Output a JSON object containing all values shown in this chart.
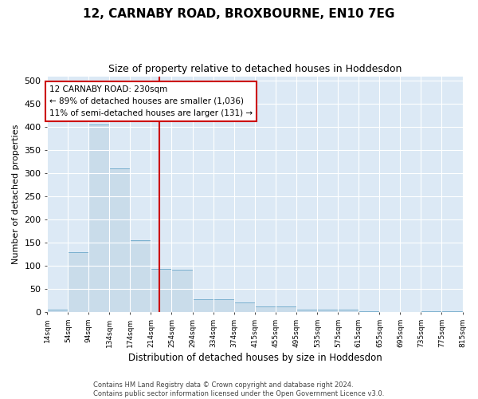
{
  "title": "12, CARNABY ROAD, BROXBOURNE, EN10 7EG",
  "subtitle": "Size of property relative to detached houses in Hoddesdon",
  "xlabel": "Distribution of detached houses by size in Hoddesdon",
  "ylabel": "Number of detached properties",
  "footer1": "Contains HM Land Registry data © Crown copyright and database right 2024.",
  "footer2": "Contains public sector information licensed under the Open Government Licence v3.0.",
  "annotation_line1": "12 CARNABY ROAD: 230sqm",
  "annotation_line2": "← 89% of detached houses are smaller (1,036)",
  "annotation_line3": "11% of semi-detached houses are larger (131) →",
  "bar_left_edges": [
    14,
    54,
    94,
    134,
    174,
    214,
    254,
    294,
    334,
    374,
    415,
    455,
    495,
    535,
    575,
    615,
    655,
    695,
    735,
    775
  ],
  "bar_widths": [
    40,
    40,
    40,
    40,
    40,
    40,
    40,
    40,
    40,
    41,
    40,
    40,
    40,
    40,
    40,
    40,
    40,
    40,
    40,
    40
  ],
  "bar_heights": [
    5,
    130,
    405,
    310,
    155,
    93,
    92,
    28,
    28,
    20,
    12,
    12,
    5,
    6,
    5,
    1,
    0,
    0,
    1,
    1
  ],
  "bar_color": "#c9dcea",
  "bar_edge_color": "#7ab0ce",
  "vline_x": 230,
  "vline_color": "#cc0000",
  "annotation_box_color": "#cc0000",
  "background_color": "#dce9f5",
  "ylim": [
    0,
    510
  ],
  "yticks": [
    0,
    50,
    100,
    150,
    200,
    250,
    300,
    350,
    400,
    450,
    500
  ],
  "x_tick_labels": [
    "14sqm",
    "54sqm",
    "94sqm",
    "134sqm",
    "174sqm",
    "214sqm",
    "254sqm",
    "294sqm",
    "334sqm",
    "374sqm",
    "415sqm",
    "455sqm",
    "495sqm",
    "535sqm",
    "575sqm",
    "615sqm",
    "655sqm",
    "695sqm",
    "735sqm",
    "775sqm",
    "815sqm"
  ]
}
